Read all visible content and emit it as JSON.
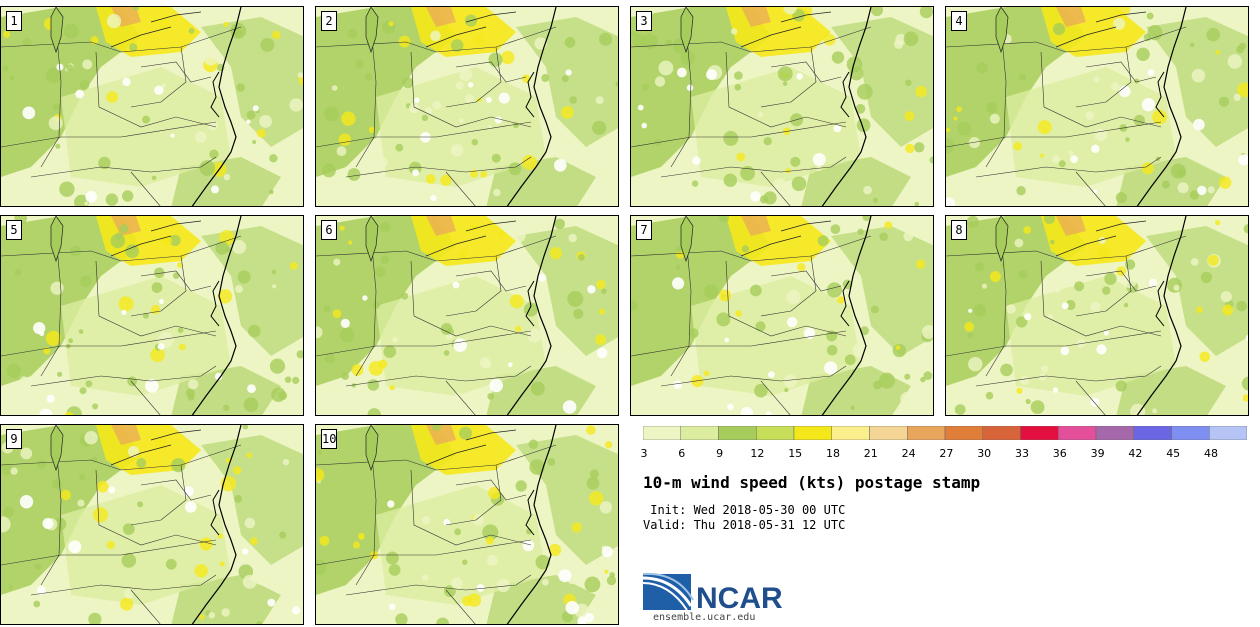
{
  "product": {
    "title": "10-m wind speed (kts) postage stamp",
    "init_line": " Init: Wed 2018-05-30 00 UTC",
    "valid_line": "Valid: Thu 2018-05-31 12 UTC"
  },
  "members": [
    "1",
    "2",
    "3",
    "4",
    "5",
    "6",
    "7",
    "8",
    "9",
    "10"
  ],
  "colorbar": {
    "tick_labels": [
      "3",
      "6",
      "9",
      "12",
      "15",
      "18",
      "21",
      "24",
      "27",
      "30",
      "33",
      "36",
      "39",
      "42",
      "45",
      "48"
    ],
    "colors": [
      "#eef5c4",
      "#dceda0",
      "#a6cd5b",
      "#c6de58",
      "#f5e81a",
      "#fbee8c",
      "#f5d596",
      "#e8a55c",
      "#e07d38",
      "#d8643a",
      "#e3103f",
      "#e34f9b",
      "#a569ab",
      "#6b66e3",
      "#7f8ef1",
      "#b5c4f5"
    ]
  },
  "branding": {
    "logo_text": "NCAR",
    "site": "ensemble.ucar.edu"
  }
}
